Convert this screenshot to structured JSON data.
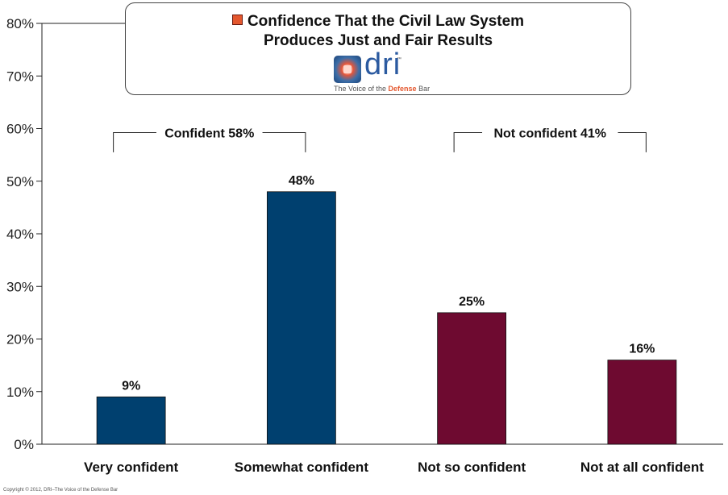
{
  "title": {
    "line1": "Confidence That the Civil Law System",
    "line2": "Produces Just and Fair Results",
    "legend_color": "#e4572e"
  },
  "logo": {
    "text": "dri",
    "tm": "™",
    "tagline_pre": "The Voice of the ",
    "tagline_accent": "Defense",
    "tagline_post": " Bar"
  },
  "copyright": "Copyright © 2012, DRI–The Voice of the Defense Bar",
  "chart_data": {
    "type": "bar",
    "categories": [
      "Very confident",
      "Somewhat confident",
      "Not so confident",
      "Not at all confident"
    ],
    "values": [
      9,
      48,
      25,
      16
    ],
    "value_labels": [
      "9%",
      "48%",
      "25%",
      "16%"
    ],
    "colors": [
      "#00406f",
      "#00406f",
      "#6e0a30",
      "#6e0a30"
    ],
    "ylim": [
      0,
      80
    ],
    "yticks": [
      0,
      10,
      20,
      30,
      40,
      50,
      60,
      70,
      80
    ],
    "ytick_labels": [
      "0%",
      "10%",
      "20%",
      "30%",
      "40%",
      "50%",
      "60%",
      "70%",
      "80%"
    ],
    "grid": false,
    "groups": [
      {
        "label": "Confident 58%",
        "from": 0,
        "to": 1
      },
      {
        "label": "Not confident 41%",
        "from": 2,
        "to": 3
      }
    ]
  }
}
